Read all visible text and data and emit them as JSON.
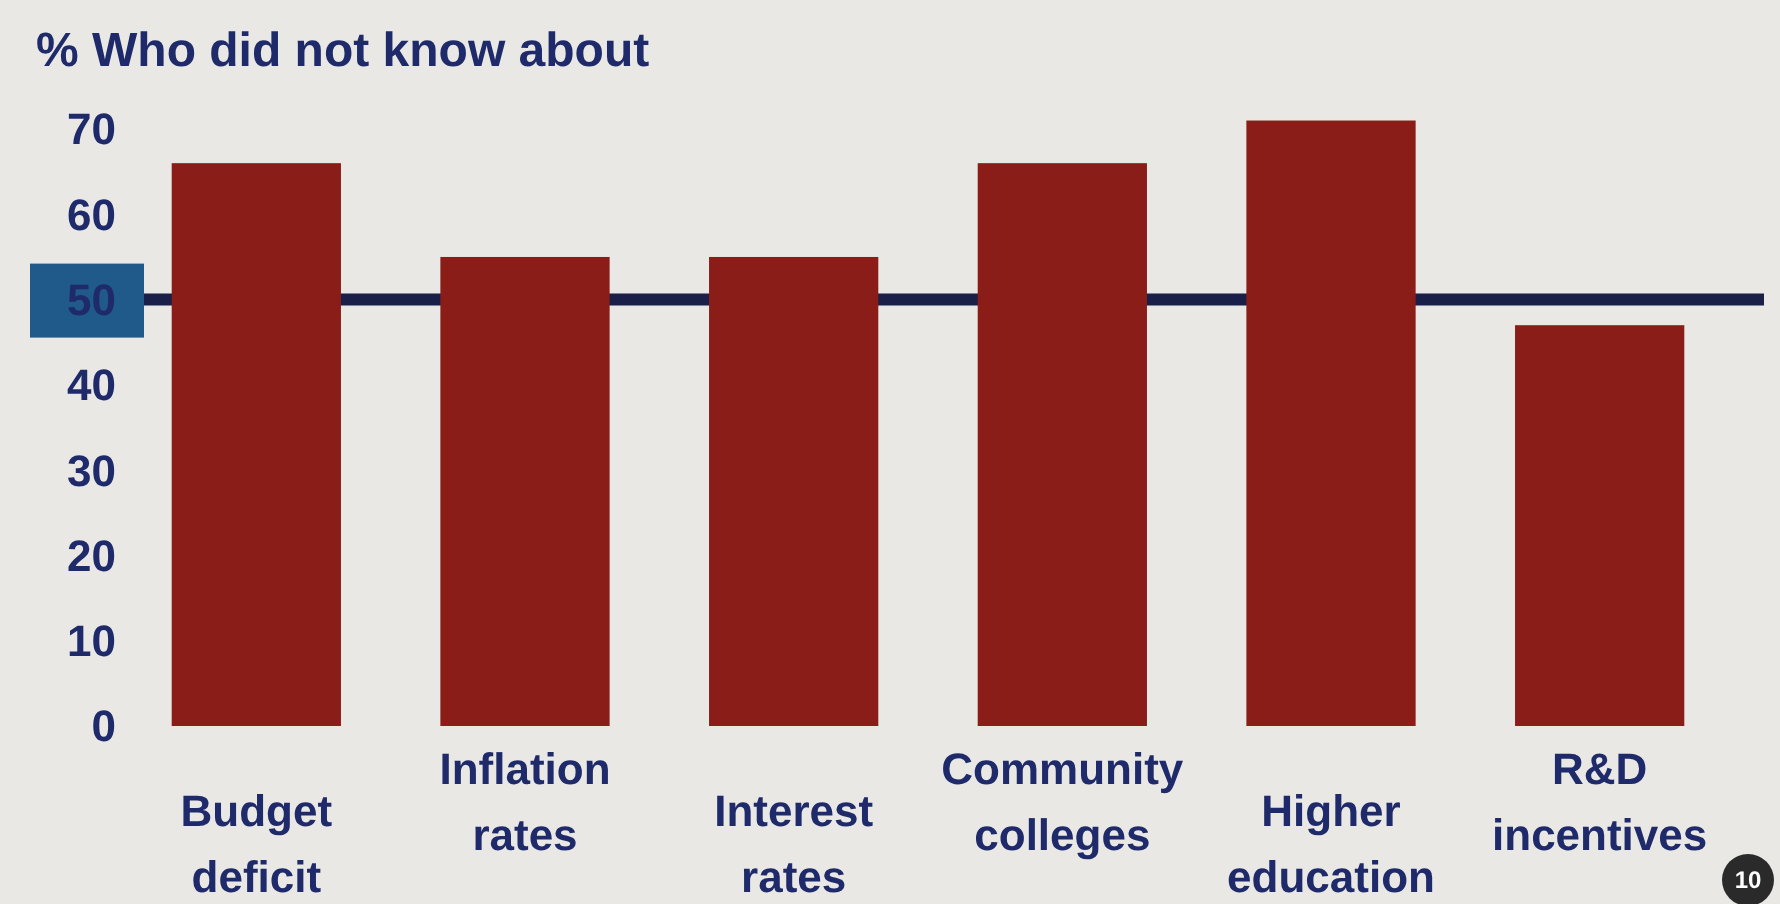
{
  "chart_data": {
    "type": "bar",
    "title": "% Who did not know about",
    "categories": [
      "Budget deficit",
      "Inflation rates",
      "Interest rates",
      "Community colleges",
      "Higher education",
      "R&D incentives"
    ],
    "values": [
      66,
      55,
      55,
      66,
      71,
      47
    ],
    "color": "#8b1d18",
    "ylim": [
      0,
      72
    ],
    "yticks": [
      0,
      10,
      20,
      30,
      40,
      50,
      60,
      70
    ],
    "grid": false,
    "ref_lines": [
      {
        "axis": "y",
        "value": 50,
        "color": "#1a1f4a"
      }
    ],
    "annotations": [
      "10"
    ]
  }
}
